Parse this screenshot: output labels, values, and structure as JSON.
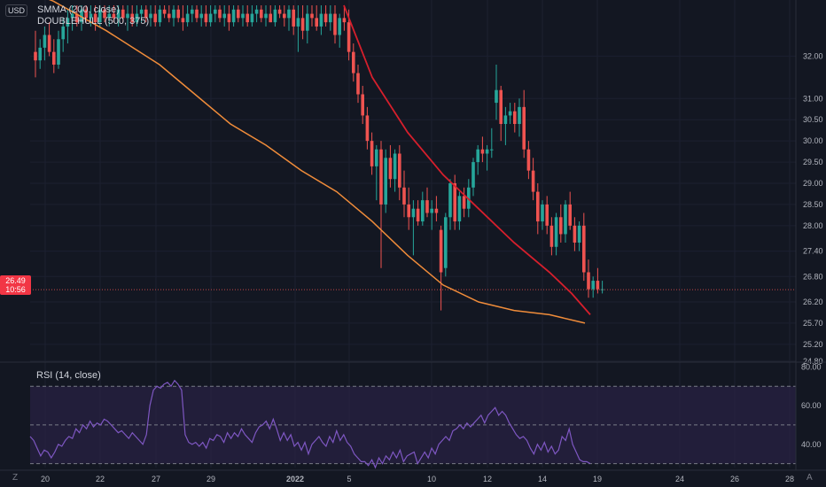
{
  "scale_mode": "USD",
  "corner_buttons": {
    "timezone": "Z",
    "auto": "A"
  },
  "legend": {
    "smma": "SMMA (200, close)",
    "hull": "DOUBLEHULL (500, 375)",
    "rsi": "RSI (14, close)"
  },
  "last_price": {
    "value": "26.49",
    "countdown": "10:56"
  },
  "colors": {
    "background": "#131722",
    "up": "#26a69a",
    "down": "#ef5350",
    "smma": "#f08c3a",
    "hull": "#d61f2c",
    "rsi_line": "#7e57c2",
    "rsi_band": "#2a2245"
  },
  "chart_data": [
    {
      "type": "candlestick",
      "x_ticks": [
        "20",
        "22",
        "27",
        "29",
        "2022",
        "5",
        "10",
        "12",
        "14",
        "19",
        "24",
        "26",
        "28"
      ],
      "y_ticks": [
        24.8,
        25.2,
        25.7,
        26.2,
        26.8,
        27.4,
        28.0,
        28.5,
        29.0,
        29.5,
        30.0,
        30.5,
        31.0,
        32.0
      ],
      "ylim": [
        24.8,
        33.2
      ],
      "candles": [
        {
          "o": 32.1,
          "h": 32.6,
          "l": 31.5,
          "c": 31.9
        },
        {
          "o": 31.9,
          "h": 32.4,
          "l": 31.7,
          "c": 32.2
        },
        {
          "o": 32.2,
          "h": 32.7,
          "l": 31.9,
          "c": 32.5
        },
        {
          "o": 32.5,
          "h": 32.8,
          "l": 32.0,
          "c": 32.1
        },
        {
          "o": 32.1,
          "h": 32.4,
          "l": 31.6,
          "c": 31.8
        },
        {
          "o": 31.8,
          "h": 32.6,
          "l": 31.7,
          "c": 32.4
        },
        {
          "o": 32.4,
          "h": 32.9,
          "l": 32.1,
          "c": 32.7
        },
        {
          "o": 32.7,
          "h": 33.1,
          "l": 32.3,
          "c": 32.9
        },
        {
          "o": 32.9,
          "h": 33.2,
          "l": 32.6,
          "c": 33.0
        },
        {
          "o": 33.0,
          "h": 33.2,
          "l": 32.7,
          "c": 32.8
        },
        {
          "o": 32.8,
          "h": 33.2,
          "l": 32.6,
          "c": 33.1
        },
        {
          "o": 33.1,
          "h": 33.2,
          "l": 32.8,
          "c": 32.9
        },
        {
          "o": 32.9,
          "h": 33.2,
          "l": 32.7,
          "c": 33.0
        },
        {
          "o": 33.0,
          "h": 33.2,
          "l": 32.6,
          "c": 32.8
        },
        {
          "o": 32.8,
          "h": 33.2,
          "l": 32.7,
          "c": 33.1
        },
        {
          "o": 33.1,
          "h": 33.2,
          "l": 32.8,
          "c": 32.9
        },
        {
          "o": 32.9,
          "h": 33.2,
          "l": 32.7,
          "c": 33.0
        },
        {
          "o": 33.0,
          "h": 33.2,
          "l": 32.8,
          "c": 32.9
        },
        {
          "o": 32.9,
          "h": 33.2,
          "l": 32.7,
          "c": 33.1
        },
        {
          "o": 33.1,
          "h": 33.2,
          "l": 32.8,
          "c": 32.9
        },
        {
          "o": 32.9,
          "h": 33.2,
          "l": 32.6,
          "c": 33.0
        },
        {
          "o": 33.0,
          "h": 33.2,
          "l": 32.7,
          "c": 32.8
        },
        {
          "o": 32.8,
          "h": 33.2,
          "l": 32.7,
          "c": 33.0
        },
        {
          "o": 33.0,
          "h": 33.2,
          "l": 32.8,
          "c": 33.1
        },
        {
          "o": 33.1,
          "h": 33.2,
          "l": 32.8,
          "c": 32.9
        },
        {
          "o": 32.9,
          "h": 33.2,
          "l": 32.7,
          "c": 33.0
        },
        {
          "o": 33.0,
          "h": 33.2,
          "l": 32.7,
          "c": 32.8
        },
        {
          "o": 32.8,
          "h": 33.2,
          "l": 32.7,
          "c": 33.1
        },
        {
          "o": 33.1,
          "h": 33.2,
          "l": 32.9,
          "c": 33.0
        },
        {
          "o": 33.0,
          "h": 33.2,
          "l": 32.8,
          "c": 32.9
        },
        {
          "o": 32.9,
          "h": 33.2,
          "l": 32.7,
          "c": 33.1
        },
        {
          "o": 33.1,
          "h": 33.2,
          "l": 32.8,
          "c": 32.9
        },
        {
          "o": 32.9,
          "h": 33.2,
          "l": 32.6,
          "c": 32.8
        },
        {
          "o": 32.8,
          "h": 33.2,
          "l": 32.7,
          "c": 33.0
        },
        {
          "o": 33.0,
          "h": 33.2,
          "l": 32.8,
          "c": 33.1
        },
        {
          "o": 33.1,
          "h": 33.2,
          "l": 32.8,
          "c": 32.9
        },
        {
          "o": 32.9,
          "h": 33.2,
          "l": 32.7,
          "c": 33.0
        },
        {
          "o": 33.0,
          "h": 33.2,
          "l": 32.7,
          "c": 32.8
        },
        {
          "o": 32.8,
          "h": 33.2,
          "l": 32.7,
          "c": 33.0
        },
        {
          "o": 33.0,
          "h": 33.2,
          "l": 32.8,
          "c": 33.1
        },
        {
          "o": 33.1,
          "h": 33.2,
          "l": 32.8,
          "c": 32.9
        },
        {
          "o": 32.9,
          "h": 33.2,
          "l": 32.7,
          "c": 33.0
        },
        {
          "o": 33.0,
          "h": 33.2,
          "l": 32.6,
          "c": 32.8
        },
        {
          "o": 32.8,
          "h": 33.2,
          "l": 32.7,
          "c": 33.1
        },
        {
          "o": 33.1,
          "h": 33.2,
          "l": 32.8,
          "c": 32.9
        },
        {
          "o": 32.9,
          "h": 33.2,
          "l": 32.7,
          "c": 33.0
        },
        {
          "o": 33.0,
          "h": 33.2,
          "l": 32.7,
          "c": 32.8
        },
        {
          "o": 32.8,
          "h": 33.2,
          "l": 32.7,
          "c": 33.0
        },
        {
          "o": 33.0,
          "h": 33.2,
          "l": 32.8,
          "c": 33.1
        },
        {
          "o": 33.1,
          "h": 33.2,
          "l": 32.8,
          "c": 32.9
        },
        {
          "o": 32.9,
          "h": 33.2,
          "l": 32.7,
          "c": 33.0
        },
        {
          "o": 33.0,
          "h": 33.2,
          "l": 32.8,
          "c": 32.8
        },
        {
          "o": 32.8,
          "h": 33.2,
          "l": 32.7,
          "c": 33.1
        },
        {
          "o": 33.1,
          "h": 33.2,
          "l": 32.9,
          "c": 33.0
        },
        {
          "o": 33.0,
          "h": 33.2,
          "l": 32.7,
          "c": 32.9
        },
        {
          "o": 32.9,
          "h": 33.2,
          "l": 32.6,
          "c": 33.1
        },
        {
          "o": 33.1,
          "h": 33.2,
          "l": 32.5,
          "c": 32.7
        },
        {
          "o": 32.7,
          "h": 33.2,
          "l": 32.1,
          "c": 32.9
        },
        {
          "o": 32.9,
          "h": 33.2,
          "l": 32.4,
          "c": 32.6
        },
        {
          "o": 32.6,
          "h": 33.2,
          "l": 32.3,
          "c": 33.0
        },
        {
          "o": 33.0,
          "h": 33.2,
          "l": 32.7,
          "c": 32.9
        },
        {
          "o": 32.9,
          "h": 33.2,
          "l": 32.6,
          "c": 32.7
        },
        {
          "o": 32.7,
          "h": 33.2,
          "l": 32.5,
          "c": 33.0
        },
        {
          "o": 33.0,
          "h": 33.2,
          "l": 32.7,
          "c": 32.8
        },
        {
          "o": 32.8,
          "h": 33.2,
          "l": 32.6,
          "c": 33.0
        },
        {
          "o": 33.0,
          "h": 33.2,
          "l": 32.3,
          "c": 32.5
        },
        {
          "o": 32.5,
          "h": 33.0,
          "l": 32.2,
          "c": 32.9
        },
        {
          "o": 32.9,
          "h": 33.2,
          "l": 32.6,
          "c": 32.8
        },
        {
          "o": 32.8,
          "h": 33.1,
          "l": 31.9,
          "c": 32.1
        },
        {
          "o": 32.1,
          "h": 32.3,
          "l": 31.4,
          "c": 31.6
        },
        {
          "o": 31.6,
          "h": 31.8,
          "l": 30.9,
          "c": 31.1
        },
        {
          "o": 31.1,
          "h": 31.3,
          "l": 30.4,
          "c": 30.6
        },
        {
          "o": 30.6,
          "h": 30.8,
          "l": 29.8,
          "c": 30.0
        },
        {
          "o": 30.0,
          "h": 30.2,
          "l": 29.2,
          "c": 29.4
        },
        {
          "o": 29.4,
          "h": 29.9,
          "l": 28.6,
          "c": 29.8
        },
        {
          "o": 29.8,
          "h": 30.0,
          "l": 27.0,
          "c": 28.5
        },
        {
          "o": 28.5,
          "h": 29.8,
          "l": 28.3,
          "c": 29.6
        },
        {
          "o": 29.6,
          "h": 29.9,
          "l": 28.9,
          "c": 29.1
        },
        {
          "o": 29.1,
          "h": 29.8,
          "l": 28.8,
          "c": 29.7
        },
        {
          "o": 29.7,
          "h": 29.9,
          "l": 28.6,
          "c": 28.9
        },
        {
          "o": 28.9,
          "h": 29.3,
          "l": 28.2,
          "c": 28.5
        },
        {
          "o": 28.5,
          "h": 28.9,
          "l": 27.9,
          "c": 28.2
        },
        {
          "o": 28.2,
          "h": 28.6,
          "l": 27.3,
          "c": 28.4
        },
        {
          "o": 28.4,
          "h": 28.6,
          "l": 28.0,
          "c": 28.1
        },
        {
          "o": 28.1,
          "h": 28.8,
          "l": 28.0,
          "c": 28.6
        },
        {
          "o": 28.6,
          "h": 28.9,
          "l": 28.2,
          "c": 28.3
        },
        {
          "o": 28.3,
          "h": 28.6,
          "l": 27.9,
          "c": 28.4
        },
        {
          "o": 28.4,
          "h": 28.7,
          "l": 28.1,
          "c": 28.3
        },
        {
          "o": 27.9,
          "h": 28.0,
          "l": 26.0,
          "c": 26.9
        },
        {
          "o": 27.0,
          "h": 28.3,
          "l": 26.8,
          "c": 28.2
        },
        {
          "o": 28.2,
          "h": 29.1,
          "l": 27.9,
          "c": 29.0
        },
        {
          "o": 29.0,
          "h": 29.2,
          "l": 27.9,
          "c": 28.1
        },
        {
          "o": 28.1,
          "h": 28.8,
          "l": 27.9,
          "c": 28.7
        },
        {
          "o": 28.7,
          "h": 28.9,
          "l": 28.2,
          "c": 28.4
        },
        {
          "o": 28.4,
          "h": 29.1,
          "l": 28.2,
          "c": 28.9
        },
        {
          "o": 28.9,
          "h": 29.6,
          "l": 28.7,
          "c": 29.5
        },
        {
          "o": 29.5,
          "h": 29.9,
          "l": 29.2,
          "c": 29.8
        },
        {
          "o": 29.8,
          "h": 30.1,
          "l": 29.5,
          "c": 29.7
        },
        {
          "o": 29.7,
          "h": 29.9,
          "l": 29.3,
          "c": 29.8
        },
        {
          "o": 29.8,
          "h": 30.3,
          "l": 29.6,
          "c": 29.8
        },
        {
          "o": 30.9,
          "h": 31.8,
          "l": 30.5,
          "c": 31.2
        },
        {
          "o": 31.2,
          "h": 31.3,
          "l": 30.0,
          "c": 30.4
        },
        {
          "o": 30.4,
          "h": 30.8,
          "l": 29.9,
          "c": 30.6
        },
        {
          "o": 30.6,
          "h": 30.9,
          "l": 30.4,
          "c": 30.7
        },
        {
          "o": 30.7,
          "h": 30.9,
          "l": 30.2,
          "c": 30.4
        },
        {
          "o": 30.4,
          "h": 31.0,
          "l": 30.1,
          "c": 30.8
        },
        {
          "o": 30.8,
          "h": 31.2,
          "l": 29.6,
          "c": 29.8
        },
        {
          "o": 29.8,
          "h": 30.0,
          "l": 29.1,
          "c": 29.3
        },
        {
          "o": 29.3,
          "h": 29.6,
          "l": 28.6,
          "c": 28.8
        },
        {
          "o": 28.8,
          "h": 29.0,
          "l": 27.8,
          "c": 28.1
        },
        {
          "o": 28.1,
          "h": 28.6,
          "l": 27.9,
          "c": 28.5
        },
        {
          "o": 28.5,
          "h": 28.7,
          "l": 27.8,
          "c": 28.0
        },
        {
          "o": 28.0,
          "h": 28.2,
          "l": 27.3,
          "c": 27.5
        },
        {
          "o": 27.5,
          "h": 28.3,
          "l": 27.3,
          "c": 28.2
        },
        {
          "o": 28.2,
          "h": 28.5,
          "l": 27.6,
          "c": 27.8
        },
        {
          "o": 27.8,
          "h": 28.6,
          "l": 27.6,
          "c": 28.5
        },
        {
          "o": 28.5,
          "h": 28.8,
          "l": 27.9,
          "c": 28.0
        },
        {
          "o": 28.0,
          "h": 28.2,
          "l": 27.4,
          "c": 27.6
        },
        {
          "o": 27.6,
          "h": 28.1,
          "l": 27.4,
          "c": 28.0
        },
        {
          "o": 28.0,
          "h": 28.3,
          "l": 26.7,
          "c": 26.9
        },
        {
          "o": 26.9,
          "h": 27.2,
          "l": 26.3,
          "c": 26.5
        },
        {
          "o": 26.5,
          "h": 26.8,
          "l": 26.3,
          "c": 26.7
        },
        {
          "o": 26.7,
          "h": 27.0,
          "l": 26.4,
          "c": 26.5
        },
        {
          "o": 26.5,
          "h": 26.7,
          "l": 26.4,
          "c": 26.5
        }
      ],
      "smma": [
        [
          0,
          33.8
        ],
        [
          60,
          33.3
        ],
        [
          120,
          32.6
        ],
        [
          180,
          31.8
        ],
        [
          220,
          31.1
        ],
        [
          260,
          30.4
        ],
        [
          300,
          29.9
        ],
        [
          340,
          29.3
        ],
        [
          380,
          28.8
        ],
        [
          420,
          28.1
        ],
        [
          460,
          27.3
        ],
        [
          500,
          26.6
        ],
        [
          540,
          26.2
        ],
        [
          580,
          26.0
        ],
        [
          620,
          25.9
        ],
        [
          660,
          25.7
        ]
      ],
      "hull": [
        [
          388,
          33.2
        ],
        [
          420,
          31.5
        ],
        [
          460,
          30.2
        ],
        [
          500,
          29.2
        ],
        [
          540,
          28.4
        ],
        [
          580,
          27.6
        ],
        [
          620,
          26.9
        ],
        [
          645,
          26.4
        ],
        [
          666,
          25.9
        ]
      ],
      "rsi": {
        "ticks": [
          40,
          60,
          80
        ],
        "ylim": [
          28,
          82
        ],
        "upper_band": 70,
        "lower_band": 30,
        "mid": 50,
        "values": [
          44,
          42,
          38,
          34,
          37,
          36,
          33,
          36,
          40,
          39,
          42,
          44,
          43,
          48,
          46,
          50,
          48,
          52,
          49,
          51,
          50,
          53,
          52,
          50,
          48,
          46,
          47,
          45,
          43,
          46,
          44,
          42,
          40,
          45,
          60,
          68,
          70,
          69,
          71,
          72,
          70,
          73,
          71,
          68,
          45,
          41,
          40,
          41,
          39,
          41,
          38,
          43,
          42,
          45,
          44,
          41,
          46,
          43,
          46,
          44,
          48,
          45,
          43,
          41,
          46,
          49,
          50,
          52,
          48,
          53,
          48,
          42,
          46,
          42,
          45,
          39,
          41,
          37,
          41,
          35,
          40,
          42,
          44,
          41,
          39,
          44,
          41,
          47,
          42,
          45,
          41,
          39,
          35,
          33,
          31,
          31,
          29,
          32,
          28,
          33,
          30,
          34,
          32,
          36,
          33,
          37,
          31,
          34,
          35,
          36,
          30,
          33,
          36,
          33,
          38,
          35,
          40,
          42,
          44,
          42,
          47,
          48,
          50,
          48,
          51,
          49,
          51,
          53,
          55,
          51,
          55,
          57,
          59,
          55,
          57,
          55,
          51,
          48,
          45,
          43,
          44,
          42,
          38,
          35,
          40,
          37,
          41,
          36,
          39,
          35,
          37,
          44,
          42,
          48,
          40,
          36,
          32,
          31,
          31,
          30
        ]
      }
    }
  ]
}
